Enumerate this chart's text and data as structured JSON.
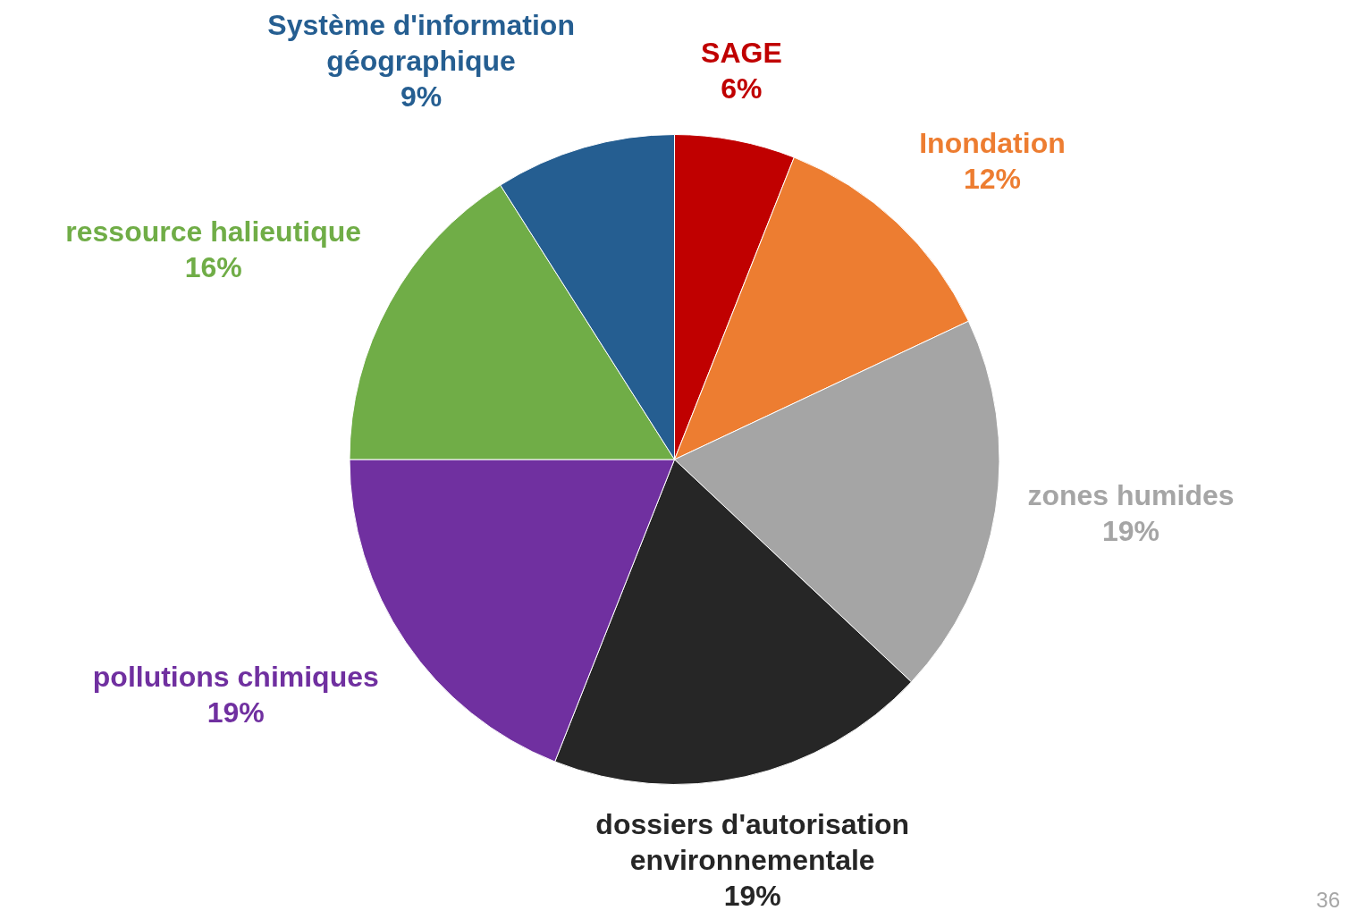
{
  "chart_data": {
    "type": "pie",
    "categories": [
      "SAGE",
      "Inondation",
      "zones humides",
      "dossiers d'autorisation environnementale",
      "pollutions chimiques",
      "ressource halieutique",
      "Système d'information géographique"
    ],
    "values": [
      6,
      12,
      19,
      19,
      19,
      16,
      9
    ],
    "colors": [
      "#c00000",
      "#ed7d31",
      "#a5a5a5",
      "#262626",
      "#7030a0",
      "#70ad47",
      "#255e91"
    ],
    "value_labels": [
      "6%",
      "12%",
      "19%",
      "19%",
      "19%",
      "16%",
      "9%"
    ],
    "legend": false,
    "annotations": [
      "36"
    ]
  }
}
